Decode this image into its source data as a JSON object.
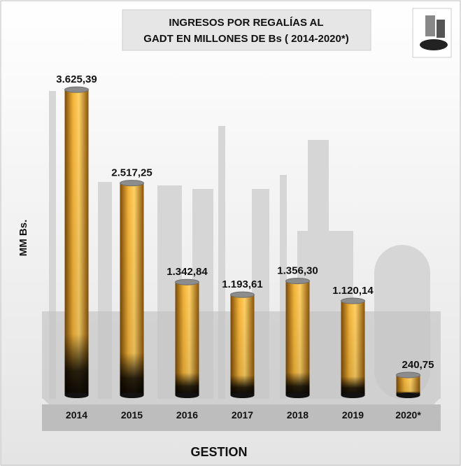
{
  "chart_data": {
    "type": "bar",
    "title": [
      "INGRESOS POR REGALÍAS AL",
      "GADT EN MILLONES DE Bs ( 2014-2020*)"
    ],
    "y_label": "MM Bs.",
    "x_label": "GESTION",
    "categories": [
      "2014",
      "2015",
      "2016",
      "2017",
      "2018",
      "2019",
      "2020*"
    ],
    "values": [
      3625.39,
      2517.25,
      1342.84,
      1193.61,
      1356.3,
      1120.14,
      240.75
    ],
    "value_labels": [
      "3.625,39",
      "2.517,25",
      "1.342,84",
      "1.193,61",
      "1.356,30",
      "1.120,14",
      "240,75"
    ],
    "color": "#e9a126",
    "ylim": [
      0,
      4000
    ]
  }
}
